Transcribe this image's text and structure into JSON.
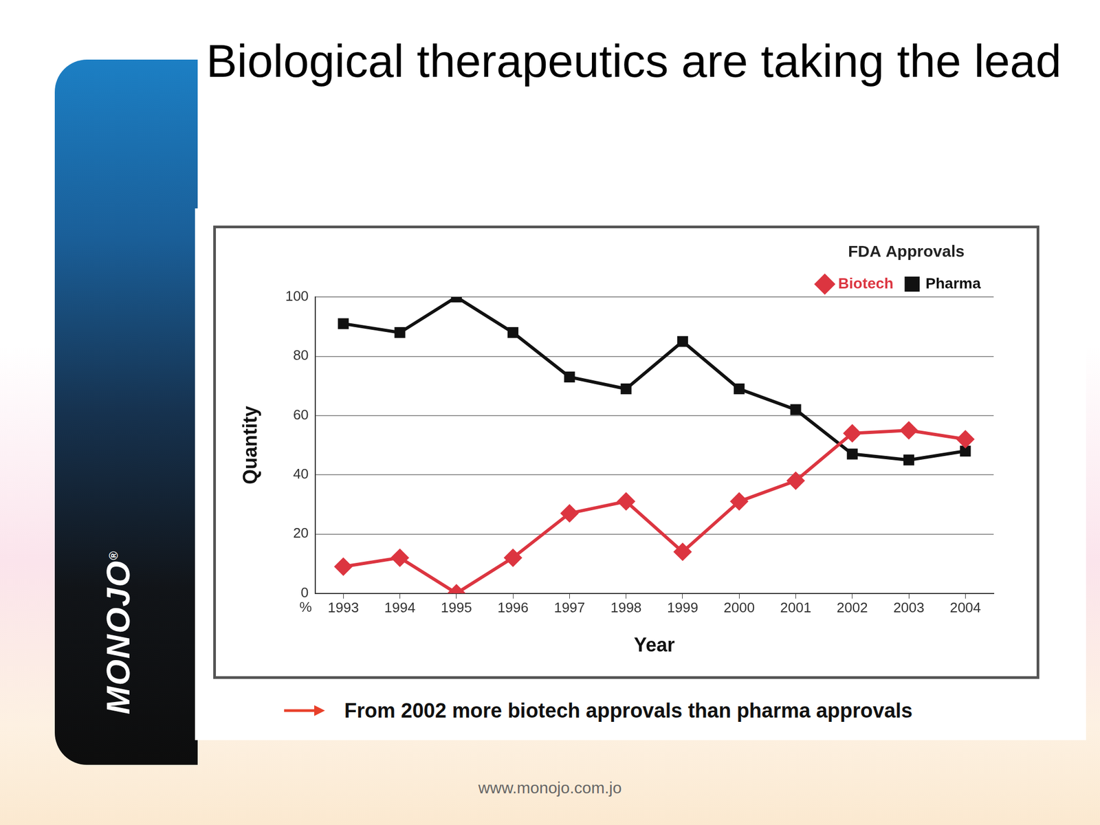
{
  "slide": {
    "logo": "MONOJO",
    "logo_mark": "®",
    "footer": "www.monojo.com.jo"
  },
  "chart_data": {
    "type": "line",
    "title": "Biological therapeutics are taking the lead",
    "legend_title": "FDA Approvals",
    "x_label": "Year",
    "y_label": "Quantity",
    "axis_note": "%",
    "annotations": [
      "From 2002 more biotech approvals than pharma approvals"
    ],
    "categories": [
      "1993",
      "1994",
      "1995",
      "1996",
      "1997",
      "1998",
      "1999",
      "2000",
      "2001",
      "2002",
      "2003",
      "2004"
    ],
    "series": [
      {
        "name": "Biotech",
        "color": "#dc3540",
        "marker": "diamond",
        "line_style": "solid",
        "values": [
          9,
          12,
          0,
          12,
          27,
          31,
          14,
          31,
          38,
          54,
          55,
          52
        ]
      },
      {
        "name": "Pharma",
        "color": "#111111",
        "marker": "square",
        "line_style": "solid",
        "values": [
          91,
          88,
          100,
          88,
          73,
          69,
          85,
          69,
          62,
          47,
          45,
          48
        ]
      }
    ],
    "ylim": [
      0,
      100
    ],
    "yticks": [
      0,
      20,
      40,
      60,
      80,
      100
    ],
    "grid": true,
    "legend": "top-right"
  }
}
